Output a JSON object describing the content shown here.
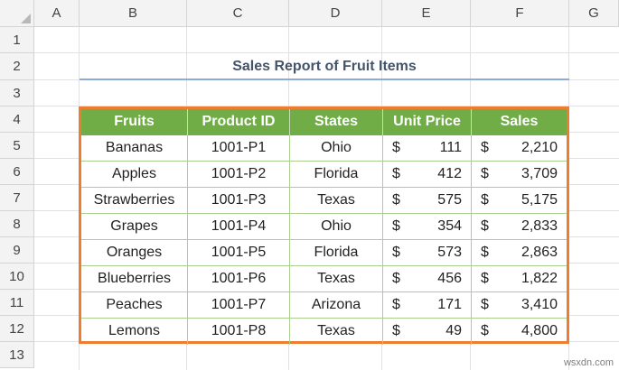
{
  "columns": [
    "A",
    "B",
    "C",
    "D",
    "E",
    "F",
    "G"
  ],
  "rows": [
    "1",
    "2",
    "3",
    "4",
    "5",
    "6",
    "7",
    "8",
    "9",
    "10",
    "11",
    "12",
    "13"
  ],
  "title": "Sales Report of Fruit Items",
  "table": {
    "headers": [
      "Fruits",
      "Product ID",
      "States",
      "Unit Price",
      "Sales"
    ],
    "currency_symbol": "$",
    "rows": [
      {
        "fruit": "Bananas",
        "id": "1001-P1",
        "state": "Ohio",
        "price": "111",
        "sales": "2,210"
      },
      {
        "fruit": "Apples",
        "id": "1001-P2",
        "state": "Florida",
        "price": "412",
        "sales": "3,709"
      },
      {
        "fruit": "Strawberries",
        "id": "1001-P3",
        "state": "Texas",
        "price": "575",
        "sales": "5,175"
      },
      {
        "fruit": "Grapes",
        "id": "1001-P4",
        "state": "Ohio",
        "price": "354",
        "sales": "2,833"
      },
      {
        "fruit": "Oranges",
        "id": "1001-P5",
        "state": "Florida",
        "price": "573",
        "sales": "2,863"
      },
      {
        "fruit": "Blueberries",
        "id": "1001-P6",
        "state": "Texas",
        "price": "456",
        "sales": "1,822"
      },
      {
        "fruit": "Peaches",
        "id": "1001-P7",
        "state": "Arizona",
        "price": "171",
        "sales": "3,410"
      },
      {
        "fruit": "Lemons",
        "id": "1001-P8",
        "state": "Texas",
        "price": "49",
        "sales": "4,800"
      }
    ]
  },
  "colors": {
    "header_fill": "#70ad47",
    "table_border": "#ed7d31",
    "title_text": "#44546a",
    "title_underline": "#8ea9db"
  },
  "watermark": "wsxdn.com"
}
